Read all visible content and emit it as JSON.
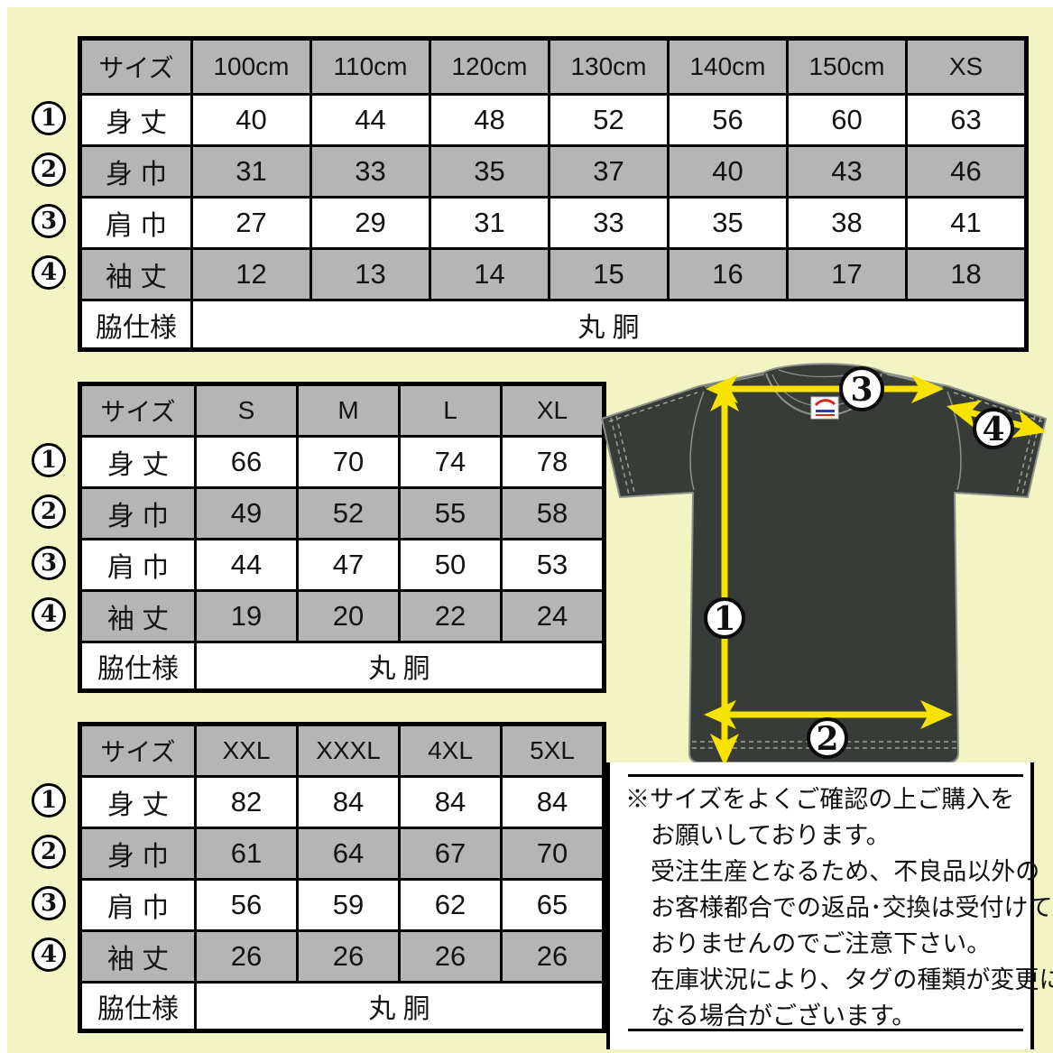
{
  "colors": {
    "background": "#f3f4c3",
    "table_gray": "#b5b5b5",
    "shirt_dark": "#383c38",
    "arrow_yellow": "#f8e300"
  },
  "size_tables": [
    {
      "name": "kids",
      "header": [
        "サイズ",
        "100cm",
        "110cm",
        "120cm",
        "130cm",
        "140cm",
        "150cm",
        "XS"
      ],
      "rows": [
        {
          "marker": "1",
          "label": "身 丈",
          "values": [
            "40",
            "44",
            "48",
            "52",
            "56",
            "60",
            "63"
          ]
        },
        {
          "marker": "2",
          "label": "身 巾",
          "values": [
            "31",
            "33",
            "35",
            "37",
            "40",
            "43",
            "46"
          ]
        },
        {
          "marker": "3",
          "label": "肩 巾",
          "values": [
            "27",
            "29",
            "31",
            "33",
            "35",
            "38",
            "41"
          ]
        },
        {
          "marker": "4",
          "label": "袖 丈",
          "values": [
            "12",
            "13",
            "14",
            "15",
            "16",
            "17",
            "18"
          ]
        }
      ],
      "footer": {
        "label": "脇仕様",
        "value": "丸 胴"
      }
    },
    {
      "name": "adult",
      "header": [
        "サイズ",
        "S",
        "M",
        "L",
        "XL"
      ],
      "rows": [
        {
          "marker": "1",
          "label": "身 丈",
          "values": [
            "66",
            "70",
            "74",
            "78"
          ]
        },
        {
          "marker": "2",
          "label": "身 巾",
          "values": [
            "49",
            "52",
            "55",
            "58"
          ]
        },
        {
          "marker": "3",
          "label": "肩 巾",
          "values": [
            "44",
            "47",
            "50",
            "53"
          ]
        },
        {
          "marker": "4",
          "label": "袖 丈",
          "values": [
            "19",
            "20",
            "22",
            "24"
          ]
        }
      ],
      "footer": {
        "label": "脇仕様",
        "value": "丸 胴"
      }
    },
    {
      "name": "big",
      "header": [
        "サイズ",
        "XXL",
        "XXXL",
        "4XL",
        "5XL"
      ],
      "rows": [
        {
          "marker": "1",
          "label": "身 丈",
          "values": [
            "82",
            "84",
            "84",
            "84"
          ]
        },
        {
          "marker": "2",
          "label": "身 巾",
          "values": [
            "61",
            "64",
            "67",
            "70"
          ]
        },
        {
          "marker": "3",
          "label": "肩 巾",
          "values": [
            "56",
            "59",
            "62",
            "65"
          ]
        },
        {
          "marker": "4",
          "label": "袖 丈",
          "values": [
            "26",
            "26",
            "26",
            "26"
          ]
        }
      ],
      "footer": {
        "label": "脇仕様",
        "value": "丸 胴"
      }
    }
  ],
  "diagram": {
    "markers": [
      "1",
      "2",
      "3",
      "4"
    ]
  },
  "notice": {
    "lines": [
      {
        "indent": false,
        "text": "※サイズをよくご確認の上ご購入を"
      },
      {
        "indent": true,
        "text": "お願いしております。"
      },
      {
        "indent": true,
        "text": "受注生産となるため、不良品以外の"
      },
      {
        "indent": true,
        "text": "お客様都合での返品･交換は受付けて"
      },
      {
        "indent": true,
        "text": "おりませんのでご注意下さい。"
      },
      {
        "indent": true,
        "text": "在庫状況により、タグの種類が変更に"
      },
      {
        "indent": true,
        "text": "なる場合がございます。"
      }
    ]
  }
}
